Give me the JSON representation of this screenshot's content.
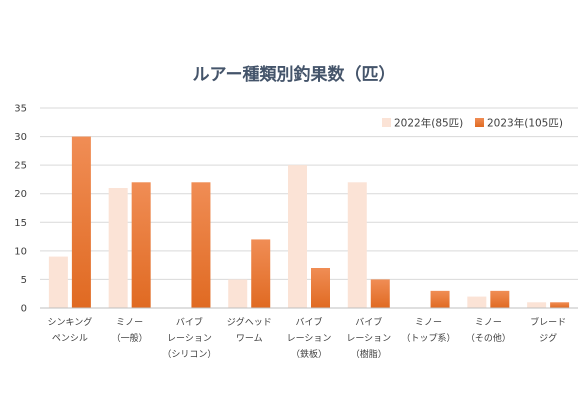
{
  "chart_data": {
    "type": "bar",
    "title": "ルアー種類別釣果数（匹）",
    "categories": [
      [
        "シンキング",
        "ペンシル"
      ],
      [
        "ミノー",
        "（一般）"
      ],
      [
        "バイブ",
        "レーション",
        "（シリコン）"
      ],
      [
        "ジグヘッド",
        "ワーム"
      ],
      [
        "バイブ",
        "レーション",
        "（鉄板）"
      ],
      [
        "バイブ",
        "レーション",
        "（樹脂）"
      ],
      [
        "ミノー",
        "（トップ系）"
      ],
      [
        "ミノー",
        "（その他）"
      ],
      [
        "ブレード",
        "ジグ"
      ]
    ],
    "series": [
      {
        "name": "2022年(85匹)",
        "values": [
          9,
          21,
          0,
          5,
          25,
          22,
          0,
          2,
          1
        ],
        "color": "#fbe3d6"
      },
      {
        "name": "2023年(105匹)",
        "values": [
          30,
          22,
          22,
          12,
          7,
          5,
          3,
          3,
          1
        ],
        "color": "#e97132"
      }
    ],
    "ylim": [
      0,
      35
    ],
    "yticks": [
      0,
      5,
      10,
      15,
      20,
      25,
      30,
      35
    ],
    "grid": true,
    "legend_position": "top-right"
  }
}
